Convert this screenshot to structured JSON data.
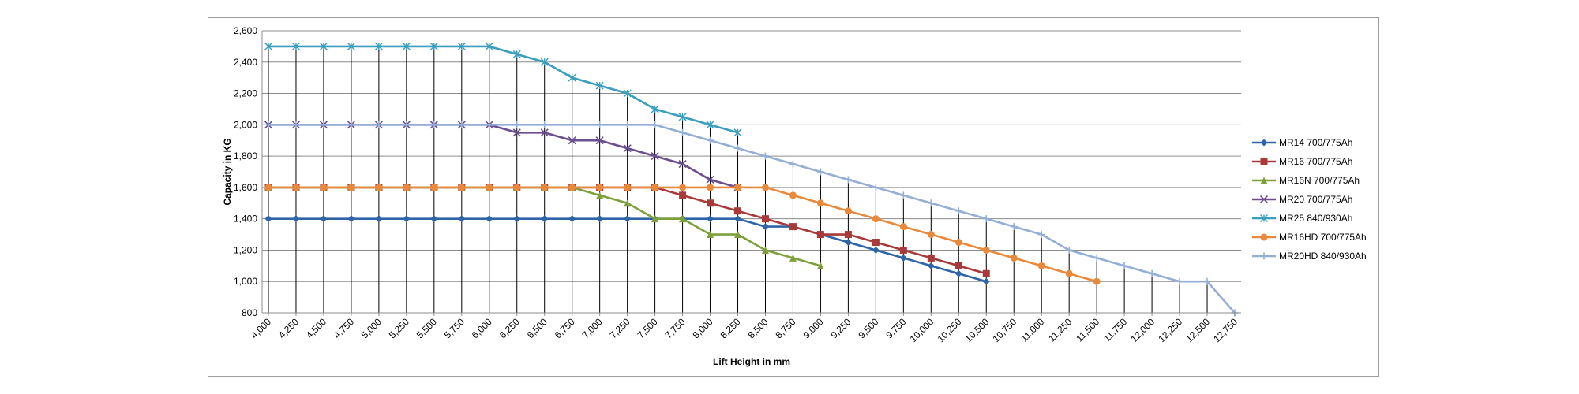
{
  "chart_data": {
    "type": "line",
    "title": "",
    "xlabel": "Lift Height in mm",
    "ylabel": "Capacity in KG",
    "xlim": [
      4000,
      12750
    ],
    "ylim": [
      800,
      2600
    ],
    "x_ticks": [
      "4,000",
      "4,250",
      "4,500",
      "4,750",
      "5,000",
      "5,250",
      "5,500",
      "5,750",
      "6,000",
      "6,250",
      "6,500",
      "6,750",
      "7,000",
      "7,250",
      "7,500",
      "7,750",
      "8,000",
      "8,250",
      "8,500",
      "8,750",
      "9,000",
      "9,250",
      "9,500",
      "9,750",
      "10,000",
      "10,250",
      "10,500",
      "10,750",
      "11,000",
      "11,250",
      "11,500",
      "11,750",
      "12,000",
      "12,250",
      "12,500",
      "12,750"
    ],
    "y_ticks": [
      "800",
      "1,000",
      "1,200",
      "1,400",
      "1,600",
      "1,800",
      "2,000",
      "2,200",
      "2,400",
      "2,600"
    ],
    "horizontal_grid": true,
    "vertical_drop_lines": true,
    "legend_position": "right",
    "series": [
      {
        "name": "MR14 700/775Ah",
        "color": "#2e64a8",
        "marker": "diamond",
        "x": [
          4000,
          4250,
          4500,
          4750,
          5000,
          5250,
          5500,
          5750,
          6000,
          6250,
          6500,
          6750,
          7000,
          7250,
          7500,
          7750,
          8000,
          8250,
          8500,
          8750,
          9000,
          9250,
          9500,
          9750,
          10000,
          10250,
          10500
        ],
        "y": [
          1400,
          1400,
          1400,
          1400,
          1400,
          1400,
          1400,
          1400,
          1400,
          1400,
          1400,
          1400,
          1400,
          1400,
          1400,
          1400,
          1400,
          1400,
          1350,
          1350,
          1300,
          1250,
          1200,
          1150,
          1100,
          1050,
          1000
        ]
      },
      {
        "name": "MR16 700/775Ah",
        "color": "#a83a3a",
        "marker": "square",
        "x": [
          4000,
          4250,
          4500,
          4750,
          5000,
          5250,
          5500,
          5750,
          6000,
          6250,
          6500,
          6750,
          7000,
          7250,
          7500,
          7750,
          8000,
          8250,
          8500,
          8750,
          9000,
          9250,
          9500,
          9750,
          10000,
          10250,
          10500
        ],
        "y": [
          1600,
          1600,
          1600,
          1600,
          1600,
          1600,
          1600,
          1600,
          1600,
          1600,
          1600,
          1600,
          1600,
          1600,
          1600,
          1550,
          1500,
          1450,
          1400,
          1350,
          1300,
          1300,
          1250,
          1200,
          1150,
          1100,
          1050
        ]
      },
      {
        "name": "MR16N 700/775Ah",
        "color": "#7ea03c",
        "marker": "triangle",
        "x": [
          4000,
          4250,
          4500,
          4750,
          5000,
          5250,
          5500,
          5750,
          6000,
          6250,
          6500,
          6750,
          7000,
          7250,
          7500,
          7750,
          8000,
          8250,
          8500,
          8750,
          9000
        ],
        "y": [
          1600,
          1600,
          1600,
          1600,
          1600,
          1600,
          1600,
          1600,
          1600,
          1600,
          1600,
          1600,
          1550,
          1500,
          1400,
          1400,
          1300,
          1300,
          1200,
          1150,
          1100
        ]
      },
      {
        "name": "MR20 700/775Ah",
        "color": "#6a4e8e",
        "marker": "x",
        "x": [
          4000,
          4250,
          4500,
          4750,
          5000,
          5250,
          5500,
          5750,
          6000,
          6250,
          6500,
          6750,
          7000,
          7250,
          7500,
          7750,
          8000,
          8250
        ],
        "y": [
          2000,
          2000,
          2000,
          2000,
          2000,
          2000,
          2000,
          2000,
          2000,
          1950,
          1950,
          1900,
          1900,
          1850,
          1800,
          1750,
          1650,
          1600
        ]
      },
      {
        "name": "MR25 840/930Ah",
        "color": "#3a9ebc",
        "marker": "star",
        "x": [
          4000,
          4250,
          4500,
          4750,
          5000,
          5250,
          5500,
          5750,
          6000,
          6250,
          6500,
          6750,
          7000,
          7250,
          7500,
          7750,
          8000,
          8250
        ],
        "y": [
          2500,
          2500,
          2500,
          2500,
          2500,
          2500,
          2500,
          2500,
          2500,
          2450,
          2400,
          2300,
          2250,
          2200,
          2100,
          2050,
          2000,
          1950
        ]
      },
      {
        "name": "MR16HD 700/775Ah",
        "color": "#e9893b",
        "marker": "circle",
        "x": [
          4000,
          4250,
          4500,
          4750,
          5000,
          5250,
          5500,
          5750,
          6000,
          6250,
          6500,
          6750,
          7000,
          7250,
          7500,
          7750,
          8000,
          8250,
          8500,
          8750,
          9000,
          9250,
          9500,
          9750,
          10000,
          10250,
          10500,
          10750,
          11000,
          11250,
          11500
        ],
        "y": [
          1600,
          1600,
          1600,
          1600,
          1600,
          1600,
          1600,
          1600,
          1600,
          1600,
          1600,
          1600,
          1600,
          1600,
          1600,
          1600,
          1600,
          1600,
          1600,
          1550,
          1500,
          1450,
          1400,
          1350,
          1300,
          1250,
          1200,
          1150,
          1100,
          1050,
          1000
        ]
      },
      {
        "name": "MR20HD 840/930Ah",
        "color": "#94aed6",
        "marker": "plus",
        "x": [
          4000,
          4250,
          4500,
          4750,
          5000,
          5250,
          5500,
          5750,
          6000,
          6250,
          6500,
          6750,
          7000,
          7250,
          7500,
          7750,
          8000,
          8250,
          8500,
          8750,
          9000,
          9250,
          9500,
          9750,
          10000,
          10250,
          10500,
          10750,
          11000,
          11250,
          11500,
          11750,
          12000,
          12250,
          12500,
          12750
        ],
        "y": [
          2000,
          2000,
          2000,
          2000,
          2000,
          2000,
          2000,
          2000,
          2000,
          2000,
          2000,
          2000,
          2000,
          2000,
          2000,
          1950,
          1900,
          1850,
          1800,
          1750,
          1700,
          1650,
          1600,
          1550,
          1500,
          1450,
          1400,
          1350,
          1300,
          1200,
          1150,
          1100,
          1050,
          1000,
          1000,
          800
        ]
      }
    ]
  }
}
